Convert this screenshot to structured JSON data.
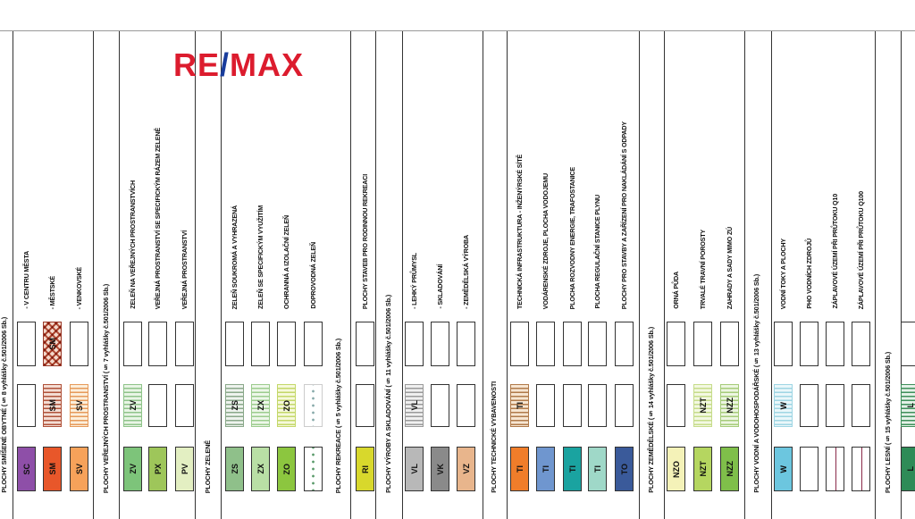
{
  "logo": {
    "part1": "RE",
    "slash": "/",
    "part2": "MAX",
    "red": "#dc1c2e",
    "blue": "#1a3d9c"
  },
  "columns": [
    {
      "type": "header",
      "label": "PLOCHY SMÍŠENÉ OBYTNÉ (§ 8 vyhlášky č.501/2006 Sb.)"
    },
    {
      "type": "item",
      "code": "SC",
      "fill": "#8e4fa8",
      "s2": "empty",
      "s3": "empty",
      "label": "- V CENTRU MĚSTA"
    },
    {
      "type": "item",
      "code": "SM",
      "fill": "#e8572a",
      "s2": "hatch",
      "s2color": "#b0523a",
      "s2bg": "#f4ddd4",
      "s3": "crosshatch",
      "label": "- MĚSTSKÉ"
    },
    {
      "type": "item",
      "code": "SV",
      "fill": "#f6a25a",
      "s2": "hatch",
      "s2color": "#e69a5a",
      "s2bg": "#fcefdc",
      "s3": "empty",
      "label": "- VENKOVSKÉ"
    },
    {
      "type": "header",
      "label": "PLOCHY VEŘEJNÝCH PROSTRANSTVÍ (§ 7 vyhlášky č.501/2006 Sb.)"
    },
    {
      "type": "item",
      "code": "ZV",
      "fill": "#7dc47a",
      "s2": "hatch",
      "s2color": "#8fc48a",
      "s2bg": "#e9f5e6",
      "s3": "empty",
      "label": "ZELEŇ NA VEŘEJNÝCH PROSTRANSTVÍCH"
    },
    {
      "type": "item",
      "code": "PX",
      "fill": "#9ec65a",
      "s2": "empty",
      "s3": "empty",
      "label": "VEŘEJNÁ PROSTRANSTVÍ SE SPECIFICKÝM RÁZEM ZELENĚ"
    },
    {
      "type": "item",
      "code": "PV",
      "fill": "#e3efc2",
      "s2": "empty",
      "s3": "empty",
      "label": "VEŘEJNÁ PROSTRANSTVÍ"
    },
    {
      "type": "header",
      "label": "PLOCHY ZELENĚ"
    },
    {
      "type": "item",
      "code": "ZS",
      "fill": "#8fc08a",
      "s2": "hatch",
      "s2color": "#8aa88a",
      "s2bg": "#eef3ee",
      "s3": "empty",
      "label": "ZELEŇ SOUKROMÁ A VYHRAZENÁ"
    },
    {
      "type": "item",
      "code": "ZX",
      "fill": "#b9dfa5",
      "s2": "hatch",
      "s2color": "#9ccc8e",
      "s2bg": "#eef7ea",
      "s3": "empty",
      "label": "ZELEŇ SE SPECIFICKÝM VYUŽITÍM"
    },
    {
      "type": "item",
      "code": "ZO",
      "fill": "#8cc63f",
      "s2": "hatch",
      "s2color": "#c4d86a",
      "s2bg": "#f6f9dc",
      "s3": "empty",
      "label": "OCHRANNÁ A IZOLAČNÍ ZELEŇ"
    },
    {
      "type": "item",
      "code": "",
      "fill": "#ffffff",
      "dots": true,
      "s2": "dots",
      "s3": "empty",
      "label": "DOPROVODNÁ ZELEŇ"
    },
    {
      "type": "header",
      "label": "PLOCHY REKREACE (§ 5 vyhlášky č.501/2006 Sb.)"
    },
    {
      "type": "item",
      "code": "RI",
      "fill": "#d8d82c",
      "s2": "empty",
      "s3": "empty",
      "label": "PLOCHY STAVEB PRO RODINNOU REKREACI"
    },
    {
      "type": "header",
      "label": "PLOCHY VÝROBY A SKLADOVÁNÍ (§ 11 vyhlášky č.501/2006 Sb.)"
    },
    {
      "type": "item",
      "code": "VL",
      "fill": "#b8b8b8",
      "s2": "hatch",
      "s2color": "#9a9a9a",
      "s2bg": "#f0f0f0",
      "s3": "empty",
      "label": "- LEHKÝ PRŮMYSL"
    },
    {
      "type": "item",
      "code": "VK",
      "fill": "#8a8a8a",
      "s2": "empty",
      "s3": "empty",
      "label": "- SKLADOVÁNÍ"
    },
    {
      "type": "item",
      "code": "VZ",
      "fill": "#e8b58c",
      "s2": "empty",
      "s3": "empty",
      "label": "- ZEMĚDĚLSKÁ VÝROBA"
    },
    {
      "type": "header",
      "label": "PLOCHY TECHNICKÉ VYBAVENOSTI"
    },
    {
      "type": "item",
      "code": "TI",
      "fill": "#f07d2a",
      "s2": "hatch",
      "s2color": "#b07a4a",
      "s2bg": "#f7e6d2",
      "s3": "empty",
      "label": "TECHNICKÁ INFRASTRUKTURA - INŽENÝRSKÉ SÍTĚ"
    },
    {
      "type": "item",
      "code": "TI",
      "fill": "#6f96cf",
      "s2": "empty",
      "s3": "empty",
      "label": "VODÁRENSKÉ ZDROJE, PLOCHA VODOJEMU"
    },
    {
      "type": "item",
      "code": "TI",
      "fill": "#1aa3a0",
      "s2": "empty",
      "s3": "empty",
      "label": "PLOCHA ROZVODNY ENERGIE, TRAFOSTANICE"
    },
    {
      "type": "item",
      "code": "TI",
      "fill": "#9fd8c8",
      "s2": "empty",
      "s3": "empty",
      "label": "PLOCHA REGULAČNÍ STANICE PLYNU"
    },
    {
      "type": "item",
      "code": "TO",
      "fill": "#3a5a9a",
      "s2": "empty",
      "s3": "empty",
      "label": "PLOCHY PRO STAVBY A ZAŘÍZENÍ PRO NAKLÁDÁNÍ S ODPADY"
    },
    {
      "type": "header",
      "label": "PLOCHY ZEMĚDĚLSKÉ (§ 14 vyhlášky č.501/2006 Sb.)"
    },
    {
      "type": "item",
      "code": "NZO",
      "fill": "#f4f2b8",
      "s2": "empty",
      "s3": "empty",
      "label": "ORNÁ PŮDA"
    },
    {
      "type": "item",
      "code": "NZT",
      "fill": "#b5d660",
      "s2": "hatch",
      "s2color": "#c6dc8a",
      "s2bg": "#f3f8e2",
      "s2code": "NZT",
      "s3": "empty",
      "label": "TRVALÉ TRAVNÍ POROSTY"
    },
    {
      "type": "item",
      "code": "NZZ",
      "fill": "#7fbf4a",
      "s2": "hatch",
      "s2color": "#a6cc7a",
      "s2bg": "#edf6e2",
      "s2code": "NZZ",
      "s3": "empty",
      "label": "ZAHRADY A SADY MIMO ZÚ"
    },
    {
      "type": "header",
      "label": "PLOCHY VODNÍ A VODOHOSPODÁŘSKÉ (§ 13 vyhlášky č.501/2006 Sb.)"
    },
    {
      "type": "item",
      "code": "W",
      "fill": "#6cc6df",
      "s2": "hatch",
      "s2color": "#9fd6e4",
      "s2bg": "#eaf7fa",
      "s3": "empty",
      "label": "VODNÍ TOKY A PLOCHY"
    },
    {
      "type": "item",
      "code": "",
      "fill": "#ffffff",
      "s2": "empty",
      "s3": "empty",
      "label": "PHO VODNÍCH ZDROJŮ"
    },
    {
      "type": "item",
      "code": "",
      "fill": "#ffffff",
      "dashdot": true,
      "s2": "empty",
      "s3": "empty",
      "label": "ZÁPLAVOVÉ ÚZEMÍ PŘI PRŮTOKU Q10"
    },
    {
      "type": "item",
      "code": "",
      "fill": "#ffffff",
      "dashdot": true,
      "s2": "empty",
      "s3": "empty",
      "label": "ZÁPLAVOVÉ ÚZEMÍ PŘI PRŮTOKU Q100"
    },
    {
      "type": "header",
      "label": "PLOCHY LESNÍ (§ 15 vyhlášky č.501/2006 Sb.)"
    },
    {
      "type": "item",
      "code": "L",
      "fill": "#2e8b57",
      "s2": "hatch",
      "s2color": "#3e8f5a",
      "s2bg": "#e4f1e8",
      "s3": "empty",
      "label": ""
    }
  ]
}
